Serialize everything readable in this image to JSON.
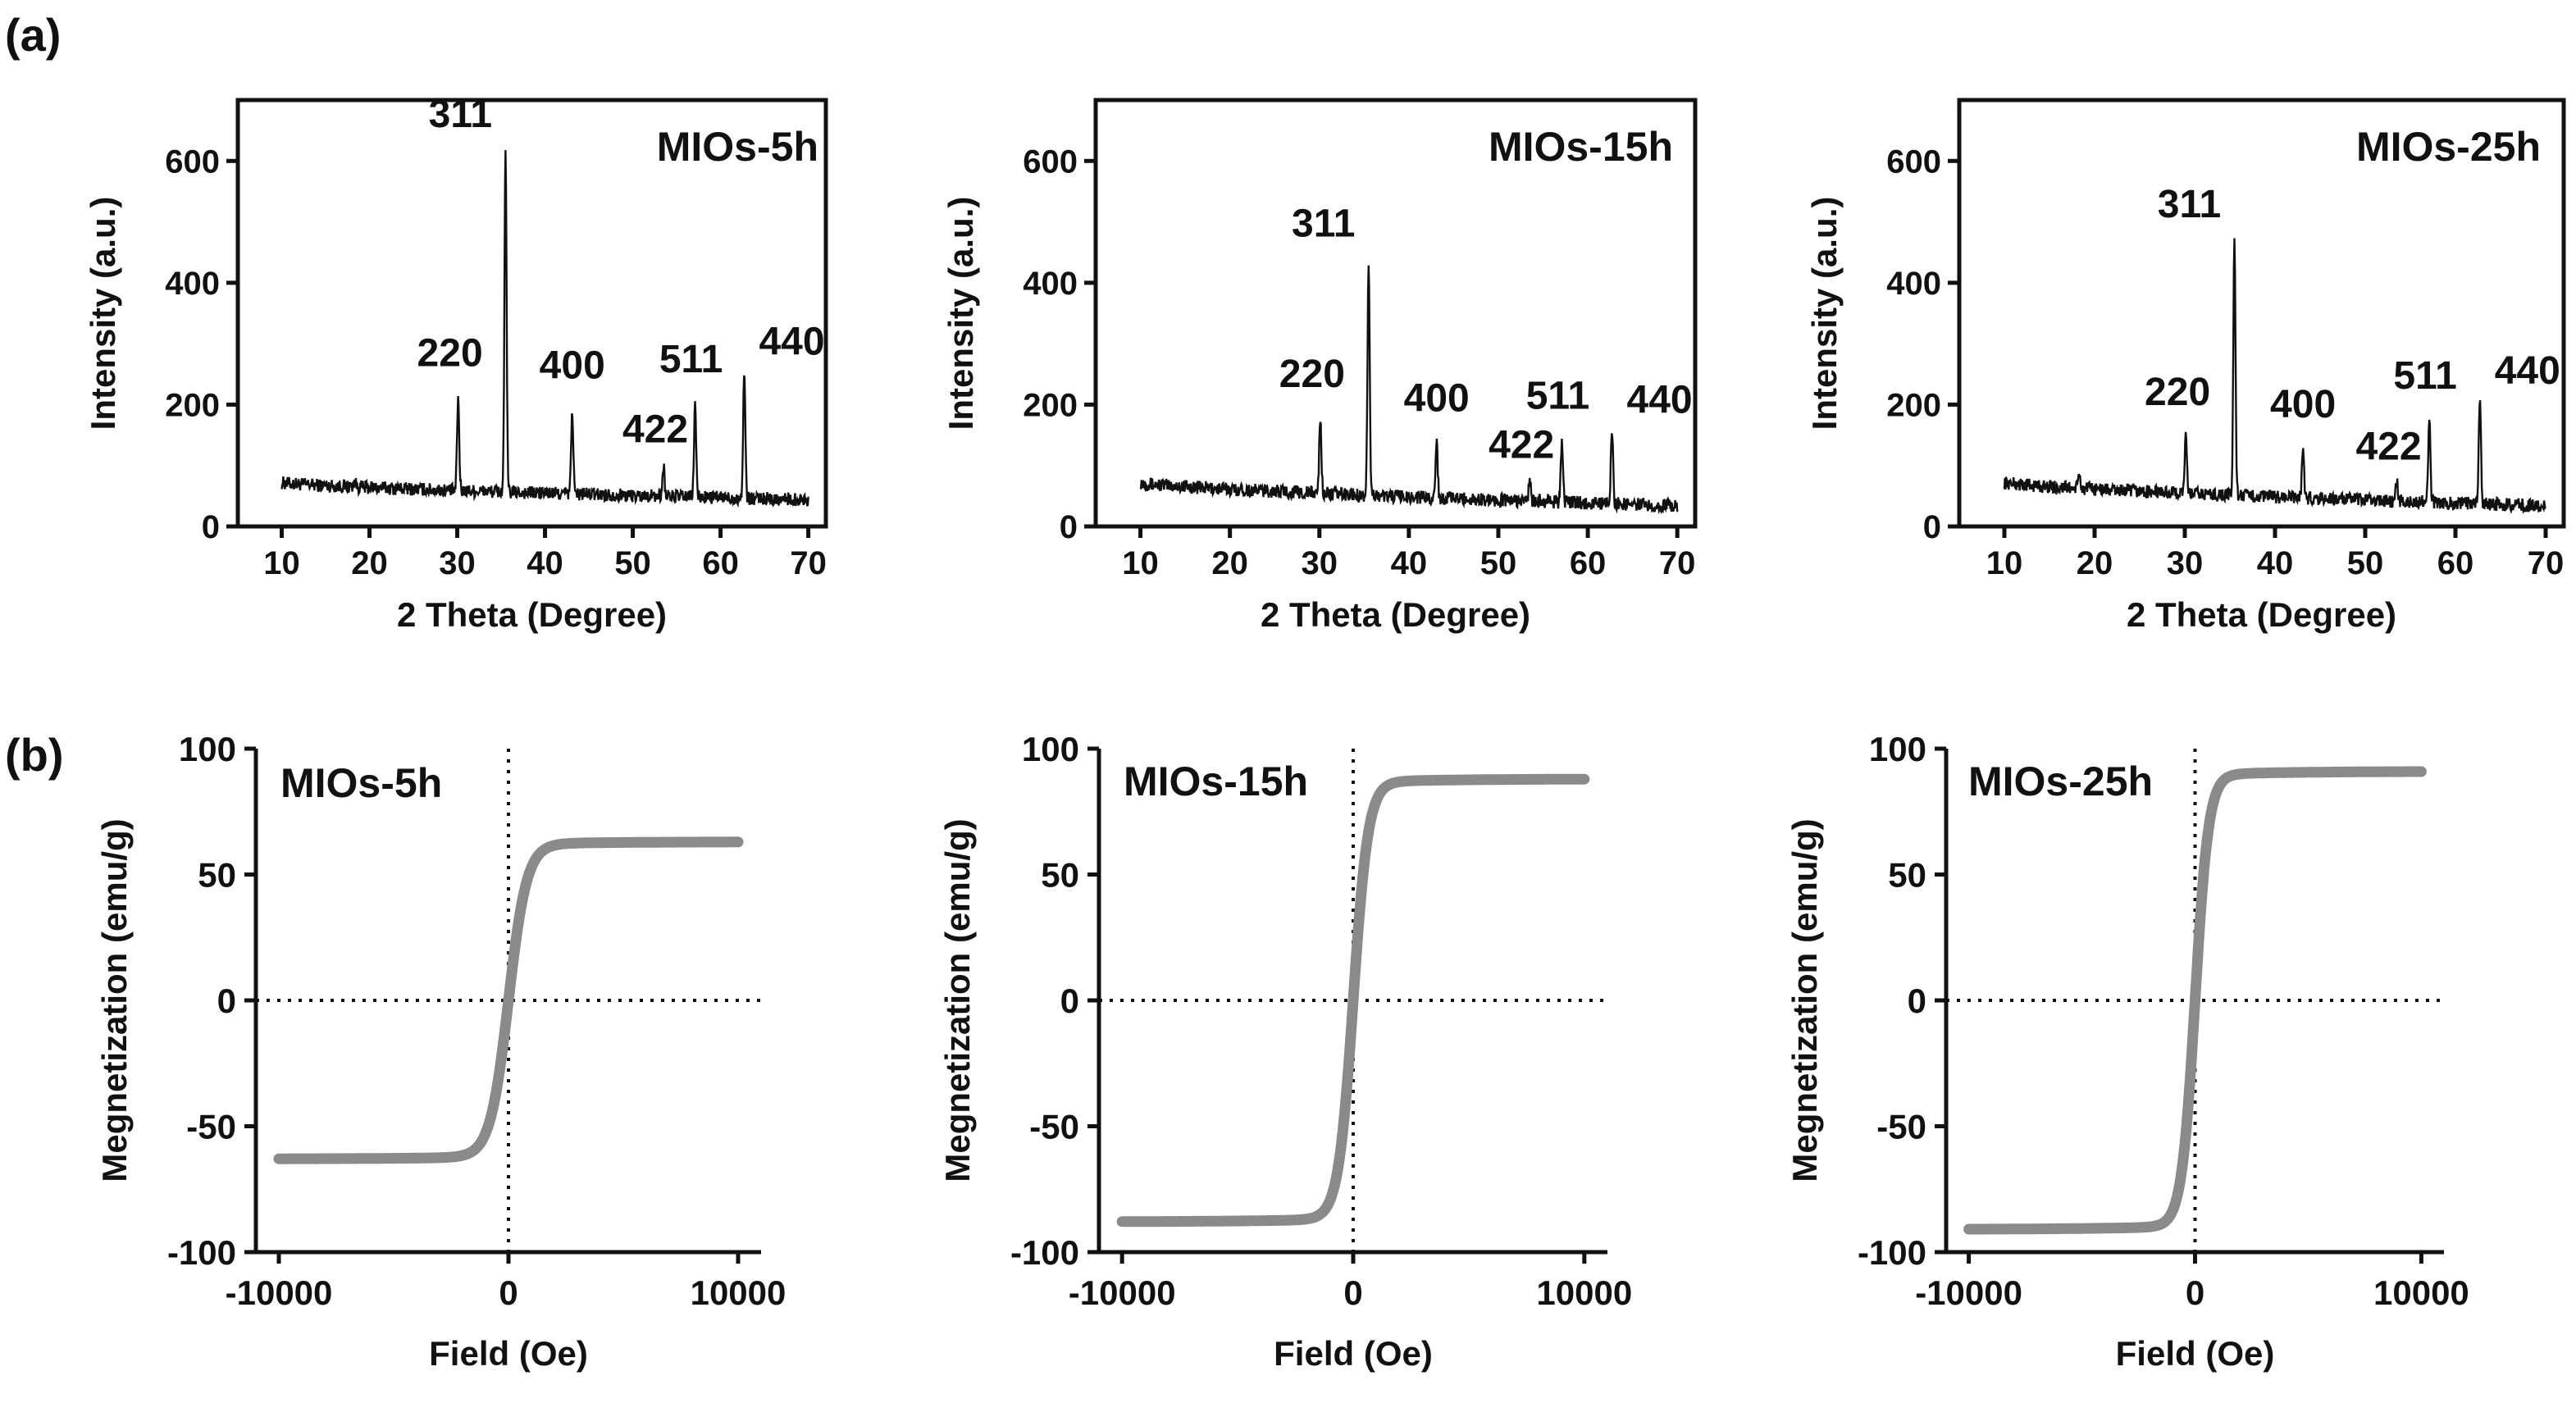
{
  "panel_labels": {
    "a": "(a)",
    "b": "(b)"
  },
  "chart_data": [
    {
      "type": "line",
      "panel": "a",
      "title": "MIOs-5h",
      "xlabel": "2 Theta (Degree)",
      "ylabel": "Intensity (a.u.)",
      "xlim": [
        5,
        72
      ],
      "ylim": [
        0,
        700
      ],
      "xticks": [
        10,
        20,
        30,
        40,
        50,
        60,
        70
      ],
      "yticks": [
        0,
        200,
        400,
        600
      ],
      "baseline_start": 72,
      "baseline_end": 44,
      "peaks": [
        {
          "x": 18.3,
          "y": 75,
          "label": ""
        },
        {
          "x": 30.1,
          "y": 212,
          "label": "220"
        },
        {
          "x": 35.5,
          "y": 618,
          "label": "311"
        },
        {
          "x": 43.1,
          "y": 192,
          "label": "400"
        },
        {
          "x": 53.5,
          "y": 100,
          "label": "422"
        },
        {
          "x": 57.1,
          "y": 202,
          "label": "511"
        },
        {
          "x": 62.7,
          "y": 258,
          "label": "440"
        }
      ]
    },
    {
      "type": "line",
      "panel": "a",
      "title": "MIOs-15h",
      "xlabel": "2 Theta (Degree)",
      "ylabel": "Intensity (a.u.)",
      "xlim": [
        5,
        72
      ],
      "ylim": [
        0,
        700
      ],
      "xticks": [
        10,
        20,
        30,
        40,
        50,
        60,
        70
      ],
      "yticks": [
        0,
        200,
        400,
        600
      ],
      "baseline_start": 72,
      "baseline_end": 34,
      "peaks": [
        {
          "x": 30.1,
          "y": 178,
          "label": "220"
        },
        {
          "x": 35.5,
          "y": 438,
          "label": "311"
        },
        {
          "x": 43.1,
          "y": 138,
          "label": "400"
        },
        {
          "x": 53.5,
          "y": 75,
          "label": "422"
        },
        {
          "x": 57.1,
          "y": 142,
          "label": "511"
        },
        {
          "x": 62.7,
          "y": 162,
          "label": "440"
        }
      ]
    },
    {
      "type": "line",
      "panel": "a",
      "title": "MIOs-25h",
      "xlabel": "2 Theta (Degree)",
      "ylabel": "Intensity (a.u.)",
      "xlim": [
        5,
        72
      ],
      "ylim": [
        0,
        700
      ],
      "xticks": [
        10,
        20,
        30,
        40,
        50,
        60,
        70
      ],
      "yticks": [
        0,
        200,
        400,
        600
      ],
      "baseline_start": 72,
      "baseline_end": 34,
      "peaks": [
        {
          "x": 18.3,
          "y": 85,
          "label": ""
        },
        {
          "x": 30.1,
          "y": 148,
          "label": "220"
        },
        {
          "x": 35.5,
          "y": 470,
          "label": "311"
        },
        {
          "x": 43.1,
          "y": 128,
          "label": "400"
        },
        {
          "x": 53.5,
          "y": 72,
          "label": "422"
        },
        {
          "x": 57.1,
          "y": 175,
          "label": "511"
        },
        {
          "x": 62.7,
          "y": 210,
          "label": "440"
        }
      ]
    },
    {
      "type": "line",
      "panel": "b",
      "title": "MIOs-5h",
      "xlabel": "Field (Oe)",
      "ylabel": "Megnetization (emu/g)",
      "xlim": [
        -11000,
        11000
      ],
      "ylim": [
        -100,
        100
      ],
      "xticks": [
        -10000,
        0,
        10000
      ],
      "yticks": [
        -100,
        -50,
        0,
        50,
        100
      ],
      "ms": 63,
      "h0": 800,
      "field": [
        -10000,
        10000
      ]
    },
    {
      "type": "line",
      "panel": "b",
      "title": "MIOs-15h",
      "xlabel": "Field (Oe)",
      "ylabel": "Megnetization (emu/g)",
      "xlim": [
        -11000,
        11000
      ],
      "ylim": [
        -100,
        100
      ],
      "xticks": [
        -10000,
        0,
        10000
      ],
      "yticks": [
        -100,
        -50,
        0,
        50,
        100
      ],
      "ms": 88,
      "h0": 650,
      "field": [
        -10000,
        10000
      ]
    },
    {
      "type": "line",
      "panel": "b",
      "title": "MIOs-25h",
      "xlabel": "Field (Oe)",
      "ylabel": "Megnetization (emu/g)",
      "xlim": [
        -11000,
        11000
      ],
      "ylim": [
        -100,
        100
      ],
      "xticks": [
        -10000,
        0,
        10000
      ],
      "yticks": [
        -100,
        -50,
        0,
        50,
        100
      ],
      "ms": 91,
      "h0": 600,
      "field": [
        -10000,
        10000
      ]
    }
  ]
}
